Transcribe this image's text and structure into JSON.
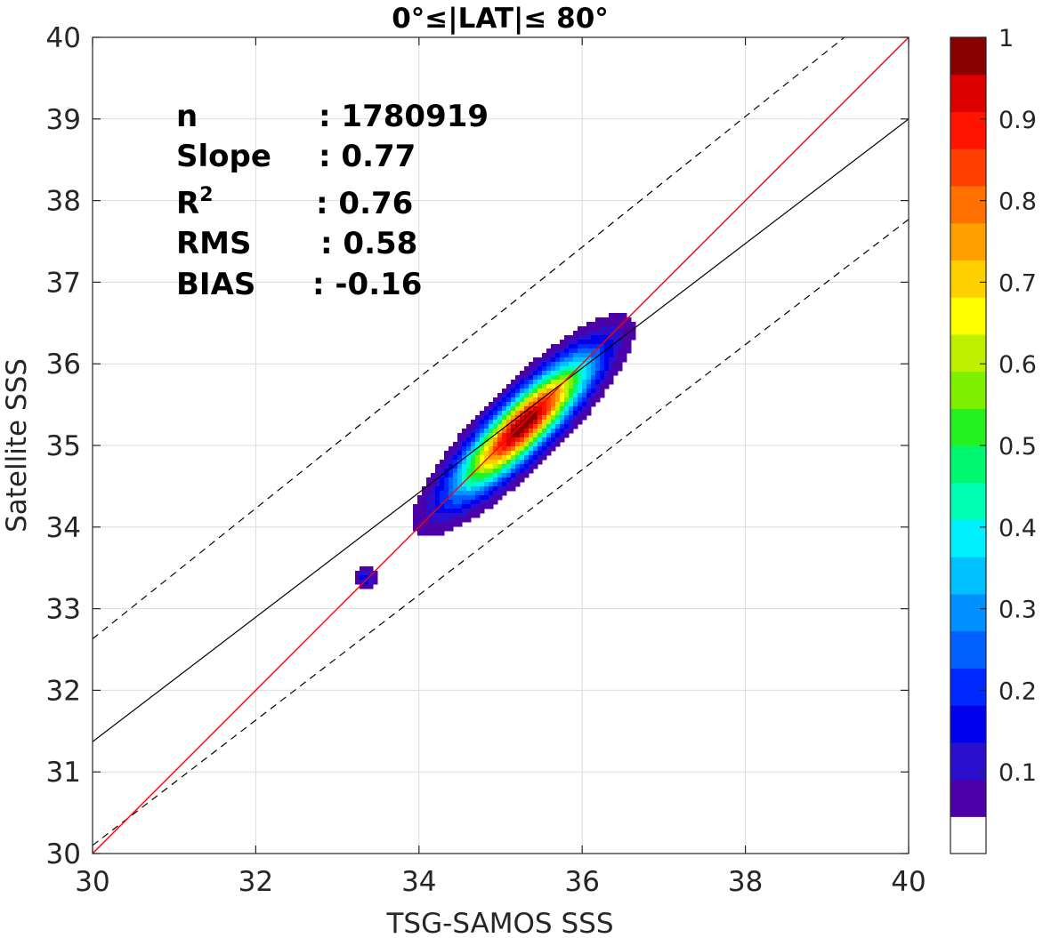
{
  "chart_data": {
    "type": "contour-density",
    "title": "0°≤|LAT|≤ 80°",
    "xlabel": "TSG-SAMOS SSS",
    "ylabel": "Satellite SSS",
    "xlim": [
      30,
      40
    ],
    "ylim": [
      30,
      40
    ],
    "xticks": [
      "30",
      "32",
      "34",
      "36",
      "38",
      "40"
    ],
    "yticks": [
      "30",
      "31",
      "32",
      "33",
      "34",
      "35",
      "36",
      "37",
      "38",
      "39",
      "40"
    ],
    "grid": true,
    "stats": [
      {
        "label": "n",
        "value": ": 1780919"
      },
      {
        "label": "Slope",
        "value": ": 0.77"
      },
      {
        "label": "R",
        "sup": "2",
        "value": ": 0.76"
      },
      {
        "label": "RMS",
        "value": ": 0.58"
      },
      {
        "label": "BIAS",
        "value": ": -0.16"
      }
    ],
    "lines": {
      "one_to_one": {
        "color": "#ff0000",
        "slope": 1,
        "intercept": 0
      },
      "regression": {
        "color": "#000000",
        "x": [
          30,
          40
        ],
        "y": [
          31.37,
          39.0
        ]
      },
      "upper_bound": {
        "style": "dashed",
        "x": [
          30,
          40
        ],
        "y": [
          32.63,
          40.63
        ]
      },
      "lower_bound": {
        "style": "dashed",
        "x": [
          30,
          40
        ],
        "y": [
          30.1,
          37.77
        ]
      }
    },
    "density": {
      "peak": [
        35.28,
        35.25
      ],
      "major_axis_angle_deg": 45,
      "sigma_along": 0.75,
      "sigma_across": 0.2,
      "secondary_blob": {
        "center": [
          33.35,
          33.38
        ],
        "level": 0.1
      }
    },
    "colorbar": {
      "ticks": [
        "0.1",
        "0.2",
        "0.3",
        "0.4",
        "0.5",
        "0.6",
        "0.7",
        "0.8",
        "0.9",
        "1"
      ],
      "range": [
        0,
        1
      ],
      "colors": [
        "#ffffff",
        "#4c00a8",
        "#2a0fcc",
        "#0000ee",
        "#0028ff",
        "#0060ff",
        "#0090ff",
        "#00c0ff",
        "#00f0ff",
        "#00ffb4",
        "#00f870",
        "#25f020",
        "#7ef000",
        "#bff000",
        "#ffff00",
        "#ffd000",
        "#ffa000",
        "#ff7000",
        "#ff4000",
        "#ff1400",
        "#dd0000",
        "#8b0000"
      ]
    }
  }
}
